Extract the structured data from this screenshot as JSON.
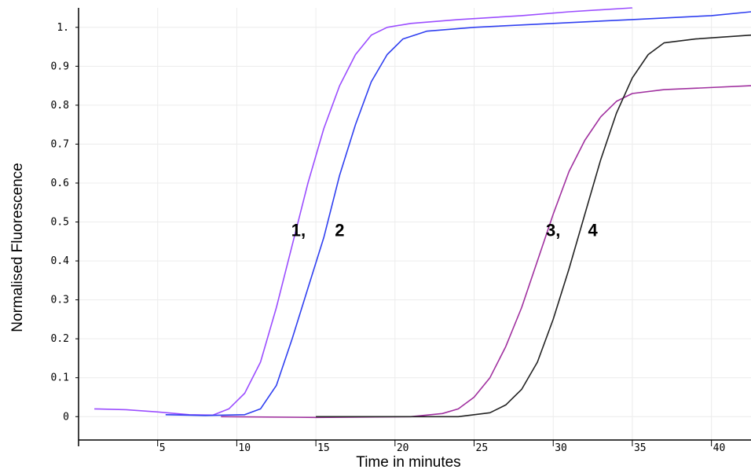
{
  "chart_data": {
    "type": "line",
    "title": "",
    "xlabel": "Time in minutes",
    "ylabel": "Normalised Fluorescence",
    "xlim": [
      0,
      42.5
    ],
    "ylim": [
      -0.06,
      1.05
    ],
    "x_ticks": [
      5,
      10,
      15,
      20,
      25,
      30,
      35,
      40
    ],
    "y_ticks": [
      0,
      0.1,
      0.2,
      0.3,
      0.4,
      0.5,
      0.6,
      0.7,
      0.8,
      0.9,
      1
    ],
    "y_tick_labels": [
      "0",
      "0.1",
      "0.2",
      "0.3",
      "0.4",
      "0.5",
      "0.6",
      "0.7",
      "0.8",
      "0.9",
      "1."
    ],
    "grid": true,
    "legend": "none",
    "series": [
      {
        "color": "#9b4dff",
        "points": [
          [
            1,
            0.02
          ],
          [
            3,
            0.018
          ],
          [
            5,
            0.012
          ],
          [
            7,
            0.005
          ],
          [
            8.5,
            0.004
          ],
          [
            9.5,
            0.02
          ],
          [
            10.5,
            0.06
          ],
          [
            11.5,
            0.14
          ],
          [
            12.5,
            0.28
          ],
          [
            13.5,
            0.44
          ],
          [
            14.5,
            0.6
          ],
          [
            15.5,
            0.74
          ],
          [
            16.5,
            0.85
          ],
          [
            17.5,
            0.93
          ],
          [
            18.5,
            0.98
          ],
          [
            19.5,
            1.0
          ],
          [
            21,
            1.01
          ],
          [
            24,
            1.02
          ],
          [
            28,
            1.03
          ],
          [
            31,
            1.04
          ],
          [
            35,
            1.05
          ]
        ]
      },
      {
        "color": "#2f3ff0",
        "points": [
          [
            5.5,
            0.005
          ],
          [
            8,
            0.003
          ],
          [
            10.5,
            0.005
          ],
          [
            11.5,
            0.02
          ],
          [
            12.5,
            0.08
          ],
          [
            13.5,
            0.2
          ],
          [
            14.5,
            0.33
          ],
          [
            15.5,
            0.46
          ],
          [
            16.5,
            0.62
          ],
          [
            17.5,
            0.75
          ],
          [
            18.5,
            0.86
          ],
          [
            19.5,
            0.93
          ],
          [
            20.5,
            0.97
          ],
          [
            22,
            0.99
          ],
          [
            25,
            1.0
          ],
          [
            30,
            1.01
          ],
          [
            35,
            1.02
          ],
          [
            40,
            1.03
          ],
          [
            42.5,
            1.04
          ]
        ]
      },
      {
        "color": "#a0309f",
        "points": [
          [
            9,
            0.0
          ],
          [
            15,
            -0.002
          ],
          [
            21,
            0.0
          ],
          [
            23,
            0.008
          ],
          [
            24,
            0.02
          ],
          [
            25,
            0.05
          ],
          [
            26,
            0.1
          ],
          [
            27,
            0.18
          ],
          [
            28,
            0.28
          ],
          [
            29,
            0.4
          ],
          [
            30,
            0.52
          ],
          [
            31,
            0.63
          ],
          [
            32,
            0.71
          ],
          [
            33,
            0.77
          ],
          [
            34,
            0.81
          ],
          [
            35,
            0.83
          ],
          [
            37,
            0.84
          ],
          [
            42.5,
            0.85
          ]
        ]
      },
      {
        "color": "#222222",
        "points": [
          [
            15,
            0.0
          ],
          [
            24,
            0.0
          ],
          [
            26,
            0.01
          ],
          [
            27,
            0.03
          ],
          [
            28,
            0.07
          ],
          [
            29,
            0.14
          ],
          [
            30,
            0.25
          ],
          [
            31,
            0.38
          ],
          [
            32,
            0.52
          ],
          [
            33,
            0.66
          ],
          [
            34,
            0.78
          ],
          [
            35,
            0.87
          ],
          [
            36,
            0.93
          ],
          [
            37,
            0.96
          ],
          [
            39,
            0.97
          ],
          [
            42.5,
            0.98
          ]
        ]
      }
    ],
    "annotations": [
      {
        "text": "1,",
        "x": 13.9,
        "y": 0.48
      },
      {
        "text": "2",
        "x": 16.5,
        "y": 0.48
      },
      {
        "text": "3,",
        "x": 30.0,
        "y": 0.48
      },
      {
        "text": "4",
        "x": 32.5,
        "y": 0.48
      }
    ]
  }
}
